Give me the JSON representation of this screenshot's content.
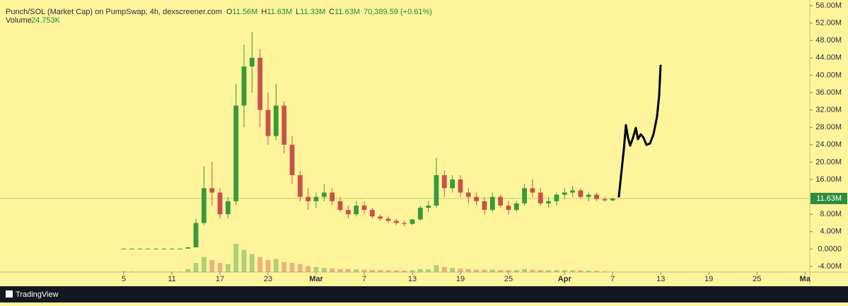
{
  "chart_data": {
    "type": "candlestick",
    "title": "Punch/SOL (Market Cap) on PumpSwap, 4h, dexscreener.com",
    "ohlc_legend": [
      {
        "label": "O",
        "value": "11.56M"
      },
      {
        "label": "H",
        "value": "11.63M"
      },
      {
        "label": "L",
        "value": "11.33M"
      },
      {
        "label": "C",
        "value": "11.63M"
      }
    ],
    "change": "70,389.59 (+0.61%)",
    "volume_label": "Volume",
    "volume_value": "24.753K",
    "up_color": "#3a9a3a",
    "down_color": "#c8524a",
    "x": [
      5,
      6,
      7,
      8,
      9,
      10,
      11,
      12,
      13,
      14,
      15,
      16,
      17,
      18,
      19,
      20,
      21,
      22,
      23,
      24,
      25,
      26,
      27,
      28,
      29,
      30,
      31,
      32,
      33,
      34,
      35,
      36,
      37,
      38,
      39,
      40,
      41,
      42,
      43,
      44,
      45,
      46,
      47,
      48,
      49,
      50,
      51,
      52,
      53,
      54,
      55,
      56,
      57,
      58,
      59,
      60,
      61,
      62,
      63,
      64,
      65,
      66
    ],
    "open": [
      0.1,
      0.1,
      0.1,
      0.1,
      0.1,
      0.1,
      0.1,
      0.1,
      0.1,
      0.4,
      6,
      14,
      13,
      8,
      11,
      33,
      42,
      44,
      32,
      26,
      33,
      24,
      17,
      12,
      11,
      12,
      13,
      11,
      9,
      8,
      10,
      9,
      7.5,
      7,
      6.5,
      6,
      5.8,
      6.8,
      9.5,
      10,
      17,
      14,
      16,
      13,
      12,
      11,
      9,
      12,
      10,
      9,
      10.5,
      14,
      13,
      10.5,
      11,
      12.5,
      13,
      13.5,
      12,
      12.5,
      11.5,
      11.2
    ],
    "high": [
      0.15,
      0.15,
      0.15,
      0.15,
      0.15,
      0.15,
      0.15,
      0.15,
      0.5,
      7,
      19,
      20,
      14,
      12,
      38,
      47,
      50,
      46,
      36,
      38,
      34,
      26,
      18,
      14,
      13,
      15,
      14,
      12,
      10,
      11,
      11,
      9.5,
      8,
      7.5,
      7,
      6.5,
      7,
      10,
      11,
      21,
      18,
      17,
      17,
      14,
      13,
      12,
      13,
      12.5,
      11,
      11,
      15,
      16,
      14,
      12,
      13,
      14,
      14.5,
      14,
      13,
      13,
      12,
      11.8
    ],
    "low": [
      0.08,
      0.08,
      0.08,
      0.08,
      0.08,
      0.08,
      0.08,
      0.08,
      0.1,
      0.4,
      5.5,
      10,
      7,
      7,
      10,
      28,
      36,
      28,
      24,
      25,
      22,
      15,
      11,
      9,
      9.5,
      11,
      10,
      8.5,
      7,
      7.5,
      8,
      7,
      6.5,
      6,
      5.5,
      5.2,
      5.5,
      6.5,
      8.5,
      9.5,
      12,
      13,
      12,
      10.5,
      10,
      8,
      8.5,
      9.5,
      8,
      8.5,
      10,
      12,
      10,
      9.5,
      10,
      11.5,
      12,
      11.5,
      11,
      11,
      10.8,
      11
    ],
    "close": [
      0.1,
      0.1,
      0.1,
      0.1,
      0.1,
      0.1,
      0.1,
      0.1,
      0.4,
      6,
      14,
      13,
      8,
      11,
      33,
      42,
      44,
      32,
      26,
      33,
      24,
      17,
      12,
      11,
      12,
      13,
      11,
      9,
      8,
      10,
      9,
      7.5,
      7,
      6.5,
      6,
      5.8,
      6.8,
      9.5,
      10,
      17,
      14,
      16,
      13,
      12,
      11,
      9,
      12,
      10,
      9,
      10.5,
      14,
      13,
      10.5,
      11,
      12.5,
      13,
      13.5,
      12,
      12.5,
      11.5,
      11.2,
      11.63
    ],
    "volume": [
      60,
      40,
      30,
      30,
      30,
      30,
      30,
      40,
      300,
      900,
      1500,
      1200,
      900,
      800,
      2800,
      2200,
      1800,
      1500,
      1200,
      1300,
      1000,
      900,
      800,
      600,
      500,
      400,
      350,
      300,
      300,
      280,
      250,
      220,
      200,
      180,
      170,
      160,
      180,
      300,
      280,
      700,
      500,
      400,
      350,
      300,
      260,
      240,
      260,
      220,
      210,
      200,
      300,
      260,
      220,
      200,
      210,
      200,
      190,
      170,
      150,
      120,
      80,
      24.753
    ],
    "xlim": [
      -10.45,
      90.6
    ],
    "xticks": [
      5,
      11,
      17,
      23,
      {
        "value": 29,
        "label": "Mar"
      },
      {
        "value": 35,
        "label": "7"
      },
      {
        "value": 41,
        "label": "13"
      },
      {
        "value": 47,
        "label": "19"
      },
      {
        "value": 53,
        "label": "25"
      },
      {
        "value": 60,
        "label": "Apr"
      },
      {
        "value": 66,
        "label": "7"
      },
      {
        "value": 72,
        "label": "13"
      },
      {
        "value": 78,
        "label": "19"
      },
      {
        "value": 84,
        "label": "25"
      },
      {
        "value": 90,
        "label": "Ma"
      }
    ],
    "ylim": [
      -5.3,
      57.3
    ],
    "yticks": [
      {
        "value": 56,
        "label": "56.00M"
      },
      {
        "value": 52,
        "label": "52.00M"
      },
      {
        "value": 48,
        "label": "48.00M"
      },
      {
        "value": 44,
        "label": "44.00M"
      },
      {
        "value": 40,
        "label": "40.00M"
      },
      {
        "value": 36,
        "label": "36.00M"
      },
      {
        "value": 32,
        "label": "32.00M"
      },
      {
        "value": 28,
        "label": "28.00M"
      },
      {
        "value": 24,
        "label": "24.00M"
      },
      {
        "value": 20,
        "label": "20.00M"
      },
      {
        "value": 16,
        "label": "16.00M"
      },
      {
        "value": 8,
        "label": "8.00M"
      },
      {
        "value": 4,
        "label": "4.00M"
      },
      {
        "value": 0,
        "label": "0.0000"
      },
      {
        "value": -4,
        "label": "-4.00M"
      }
    ],
    "last_price": {
      "value": 11.63,
      "label": "11.63M"
    },
    "brand": "TradingView"
  }
}
